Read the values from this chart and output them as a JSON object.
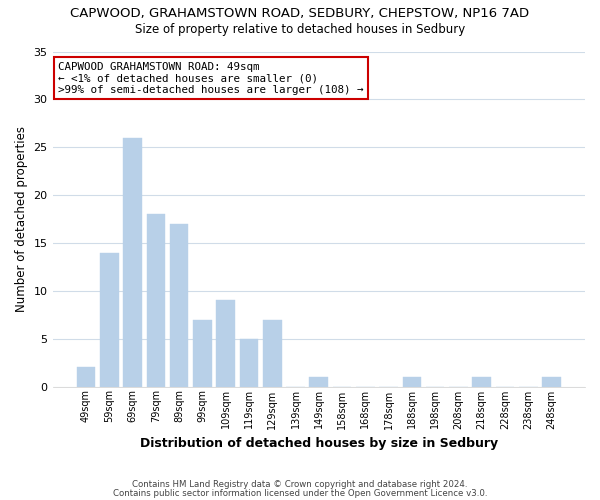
{
  "title": "CAPWOOD, GRAHAMSTOWN ROAD, SEDBURY, CHEPSTOW, NP16 7AD",
  "subtitle": "Size of property relative to detached houses in Sedbury",
  "xlabel": "Distribution of detached houses by size in Sedbury",
  "ylabel": "Number of detached properties",
  "bins": [
    "49sqm",
    "59sqm",
    "69sqm",
    "79sqm",
    "89sqm",
    "99sqm",
    "109sqm",
    "119sqm",
    "129sqm",
    "139sqm",
    "149sqm",
    "158sqm",
    "168sqm",
    "178sqm",
    "188sqm",
    "198sqm",
    "208sqm",
    "218sqm",
    "228sqm",
    "238sqm",
    "248sqm"
  ],
  "values": [
    2,
    14,
    26,
    18,
    17,
    7,
    9,
    5,
    7,
    0,
    1,
    0,
    0,
    0,
    1,
    0,
    0,
    1,
    0,
    0,
    1
  ],
  "bar_color": "#b8d0e8",
  "ylim": [
    0,
    35
  ],
  "yticks": [
    0,
    5,
    10,
    15,
    20,
    25,
    30,
    35
  ],
  "annotation_box_text": "CAPWOOD GRAHAMSTOWN ROAD: 49sqm\n← <1% of detached houses are smaller (0)\n>99% of semi-detached houses are larger (108) →",
  "footer_line1": "Contains HM Land Registry data © Crown copyright and database right 2024.",
  "footer_line2": "Contains public sector information licensed under the Open Government Licence v3.0.",
  "background_color": "#ffffff",
  "grid_color": "#d0dce8"
}
